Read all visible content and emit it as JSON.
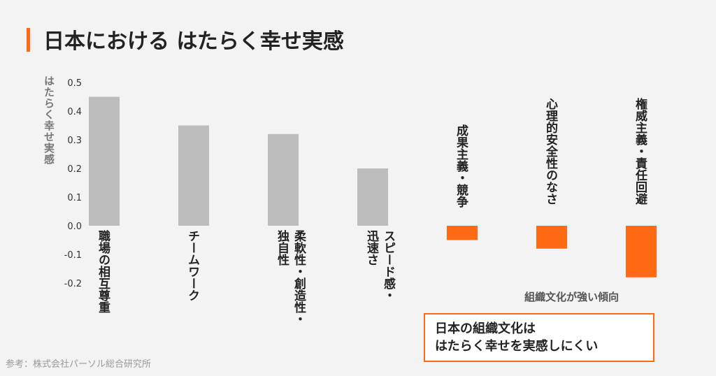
{
  "header": {
    "title": "日本における はたらく幸せ実感"
  },
  "chart_data": {
    "type": "bar",
    "categories": [
      "職場の相互尊重",
      "チームワーク",
      "柔軟性・創造性・独自性",
      "スピード感・迅速さ",
      "成果主義・競争",
      "心理的安全性のなさ",
      "権威主義・責任回避"
    ],
    "category_label_lines": [
      [
        "職場の相互尊重"
      ],
      [
        "チームワーク"
      ],
      [
        "柔軟性・創造性・",
        "独自性"
      ],
      [
        "スピード感・",
        "迅速さ"
      ],
      [
        "成果主義・競争"
      ],
      [
        "心理的安全性のなさ"
      ],
      [
        "権威主義・責任回避"
      ]
    ],
    "values": [
      0.45,
      0.35,
      0.32,
      0.2,
      -0.05,
      -0.08,
      -0.18
    ],
    "ylabel": "はたらく幸せ実感",
    "ylim": [
      -0.2,
      0.5
    ],
    "yticks": [
      "0.5",
      "0.4",
      "0.3",
      "0.2",
      "0.1",
      "0.0",
      "-0.1",
      "-0.2"
    ],
    "positive_color": "#bdbdbd",
    "negative_color": "#ff6a13",
    "grid": false
  },
  "annotation": {
    "text": "組織文化が強い傾向"
  },
  "callout": {
    "line1": "日本の組織文化は",
    "line2": "はたらく幸せを実感しにくい"
  },
  "source": "参考：株式会社パーソル総合研究所"
}
